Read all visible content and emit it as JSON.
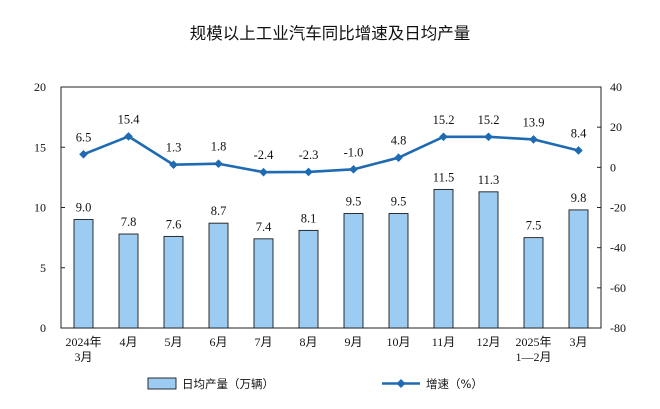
{
  "chart_data": {
    "type": "bar+line",
    "title": "规模以上工业汽车同比增速及日均产量",
    "categories": [
      [
        "2024年",
        "3月"
      ],
      [
        "4月"
      ],
      [
        "5月"
      ],
      [
        "6月"
      ],
      [
        "7月"
      ],
      [
        "8月"
      ],
      [
        "9月"
      ],
      [
        "10月"
      ],
      [
        "11月"
      ],
      [
        "12月"
      ],
      [
        "2025年",
        "1—2月"
      ],
      [
        "3月"
      ]
    ],
    "series": [
      {
        "name": "日均产量（万辆）",
        "type": "bar",
        "axis": "left",
        "color": "#9cccf2",
        "values": [
          9.0,
          7.8,
          7.6,
          8.7,
          7.4,
          8.1,
          9.5,
          9.5,
          11.5,
          11.3,
          7.5,
          9.8
        ],
        "labels": [
          "9.0",
          "7.8",
          "7.6",
          "8.7",
          "7.4",
          "8.1",
          "9.5",
          "9.5",
          "11.5",
          "11.3",
          "7.5",
          "9.8"
        ]
      },
      {
        "name": "增速（%）",
        "type": "line",
        "axis": "right",
        "color": "#1f6bb3",
        "values": [
          6.5,
          15.4,
          1.3,
          1.8,
          -2.4,
          -2.3,
          -1.0,
          4.8,
          15.2,
          15.2,
          13.9,
          8.4
        ],
        "labels": [
          "6.5",
          "15.4",
          "1.3",
          "1.8",
          "-2.4",
          "-2.3",
          "-1.0",
          "4.8",
          "15.2",
          "15.2",
          "13.9",
          "8.4"
        ]
      }
    ],
    "y_left": {
      "min": 0,
      "max": 20,
      "ticks": [
        0,
        5,
        10,
        15,
        20
      ]
    },
    "y_right": {
      "min": -80,
      "max": 40,
      "ticks": [
        -80,
        -60,
        -40,
        -20,
        0,
        20,
        40
      ]
    },
    "grid": false,
    "legend_position": "bottom"
  }
}
